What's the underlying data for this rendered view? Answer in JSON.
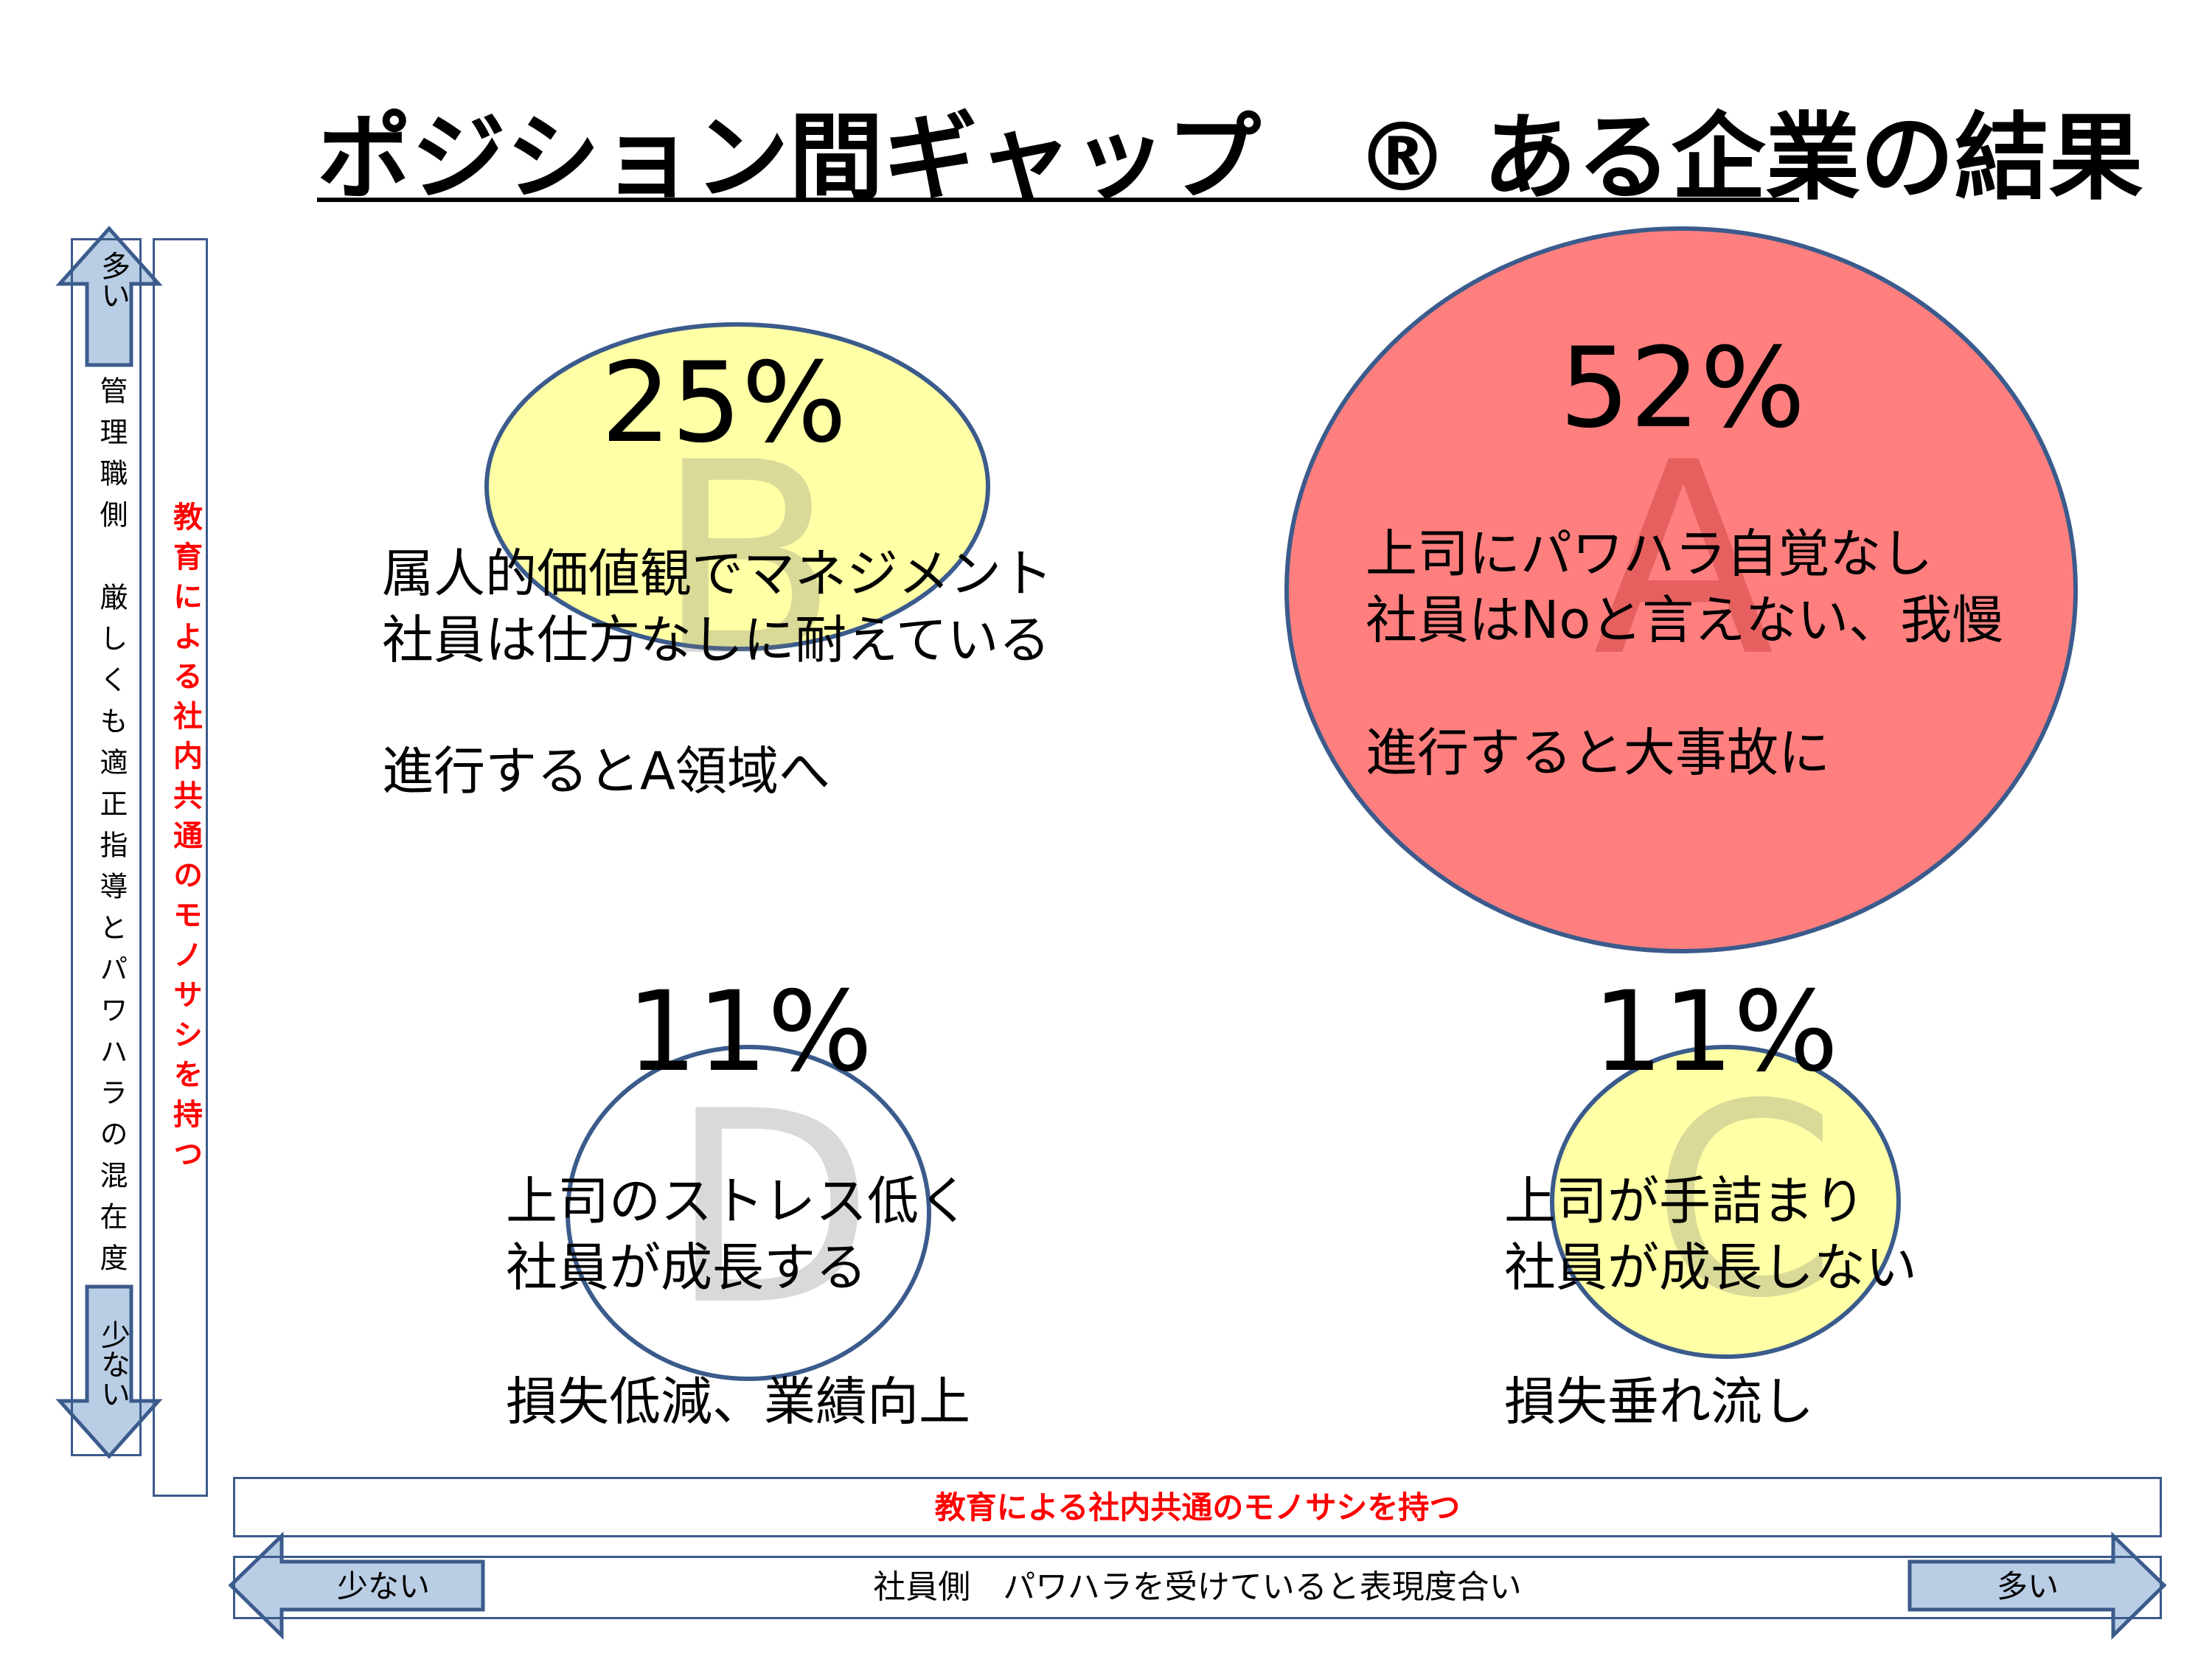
{
  "title": "ポジション間ギャップ　® ある企業の結果",
  "quadrants": {
    "A": {
      "percent": "52%",
      "letter": "A",
      "lines": [
        "上司にパワハラ自覚なし",
        "社員はNoと言えない、我慢",
        "進行すると大事故に"
      ],
      "color": "#ff7f7f"
    },
    "B": {
      "percent": "25%",
      "letter": "B",
      "lines": [
        "属人的価値観でマネジメント",
        "社員は仕方なしに耐えている",
        "進行するとA領域へ"
      ],
      "color": "#ffffa6"
    },
    "C": {
      "percent": "11%",
      "letter": "C",
      "lines": [
        "上司が手詰まり",
        "社員が成長しない",
        "損失垂れ流し"
      ],
      "color": "#ffffa6"
    },
    "D": {
      "percent": "11%",
      "letter": "D",
      "lines": [
        "上司のストレス低く",
        "社員が成長する",
        "損失低減、業績向上"
      ],
      "color": "#ffffff"
    }
  },
  "vertical_axis": {
    "top_label": "多い",
    "bottom_label": "少ない",
    "description": "管理職側　厳しくも適正指導とパワハラの混在度",
    "red_note": "教育による社内共通のモノサシを持つ"
  },
  "horizontal_axis": {
    "left_label": "少ない",
    "right_label": "多い",
    "description": "社員側　パワハラを受けていると表現度合い",
    "red_note": "教育による社内共通のモノサシを持つ"
  },
  "colors": {
    "outline": "#3b5b8c",
    "arrow_fill": "#b9cde5",
    "red_text": "#ff0000"
  }
}
